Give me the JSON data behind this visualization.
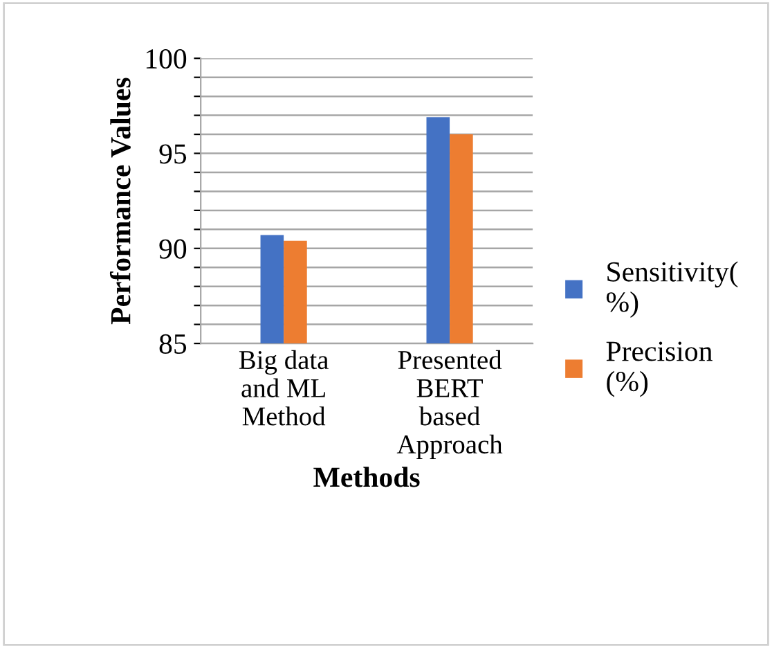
{
  "chart_data": {
    "type": "bar",
    "xlabel": "Methods",
    "ylabel": "Performance Values",
    "categories": [
      "Big data\nand ML\nMethod",
      "Presented\nBERT\nbased\nApproach"
    ],
    "series": [
      {
        "name": "Sensitivity(\n%)",
        "color": "#4472c4",
        "values": [
          90.7,
          96.9
        ]
      },
      {
        "name": "Precision\n(%)",
        "color": "#ed7d31",
        "values": [
          90.4,
          96.0
        ]
      }
    ],
    "ylim": [
      85,
      100
    ],
    "yticks": [
      85,
      {
        "value": 86,
        "label": null
      },
      {
        "value": 87,
        "label": null
      },
      {
        "value": 88,
        "label": null
      },
      {
        "value": 89,
        "label": null
      },
      90,
      {
        "value": 91,
        "label": null
      },
      {
        "value": 92,
        "label": null
      },
      {
        "value": 93,
        "label": null
      },
      {
        "value": 94,
        "label": null
      },
      95,
      {
        "value": 96,
        "label": null
      },
      {
        "value": 97,
        "label": null
      },
      {
        "value": 98,
        "label": null
      },
      {
        "value": 99,
        "label": null
      },
      100
    ],
    "grid": "y",
    "legend": "right"
  }
}
